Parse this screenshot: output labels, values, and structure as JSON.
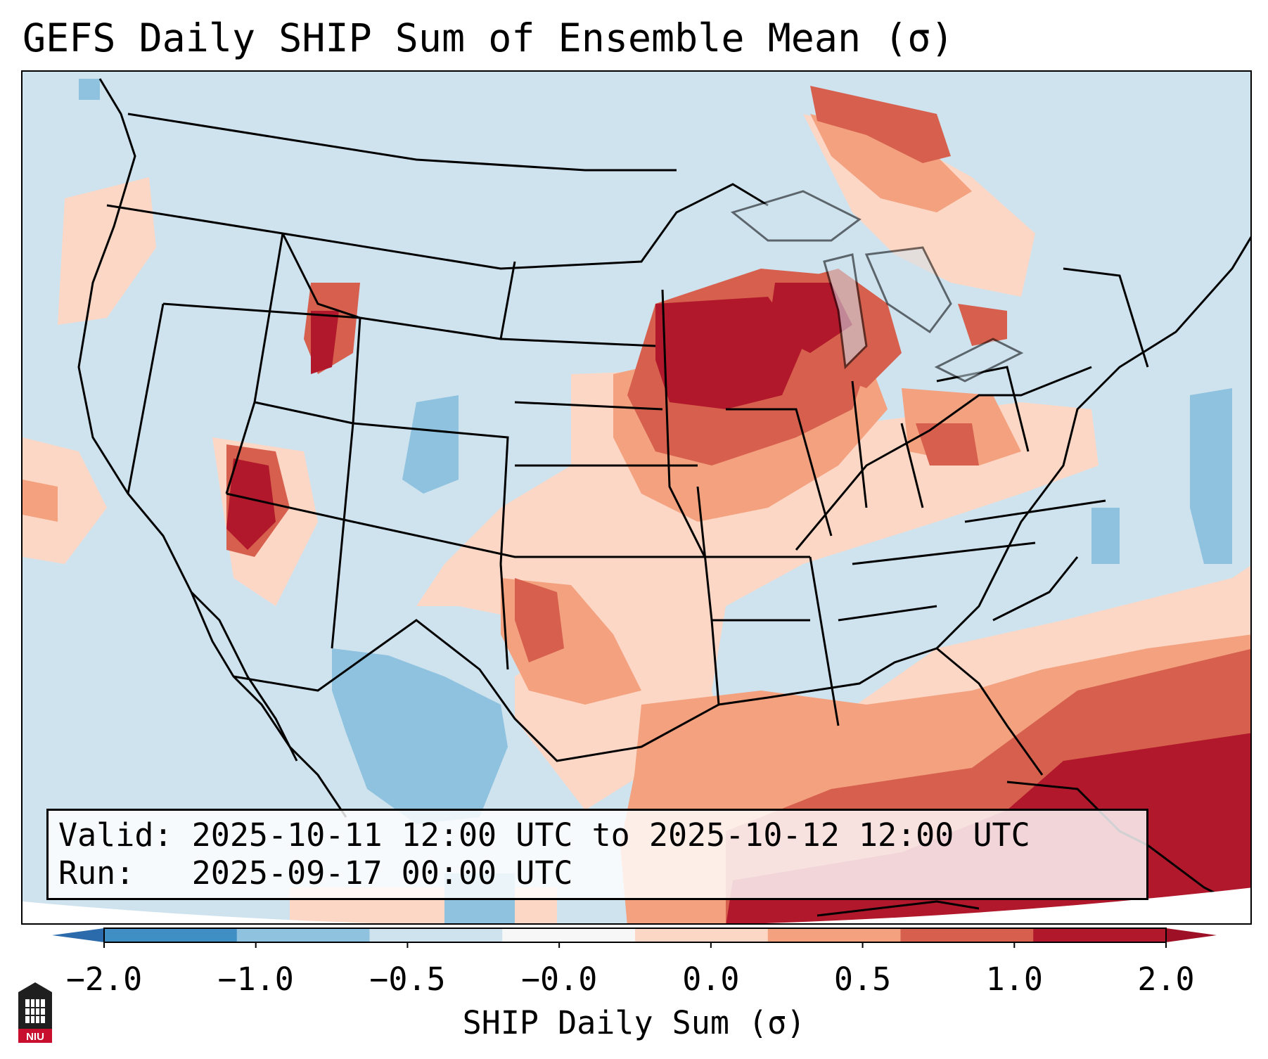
{
  "title": "GEFS Daily SHIP Sum of Ensemble Mean (σ)",
  "info": {
    "valid_label": "Valid:",
    "valid_value": "2025-10-11 12:00 UTC to 2025-10-12 12:00 UTC",
    "run_label": "Run:",
    "run_value": "2025-09-17 00:00 UTC"
  },
  "colorbar": {
    "label": "SHIP Daily Sum (σ)",
    "ticks": [
      "−2.0",
      "−1.0",
      "−0.5",
      "−0.0",
      "0.0",
      "0.5",
      "1.0",
      "2.0"
    ],
    "colors": [
      "#3f8ec4",
      "#8fc2de",
      "#cfe3ef",
      "#f7f7f7",
      "#fcd7c5",
      "#f3a17f",
      "#d6604d",
      "#b2182b"
    ],
    "extend_min_color": "#2b6aab",
    "extend_max_color": "#9e1025"
  },
  "logo": {
    "text": "NIU",
    "color": "#c8102e"
  }
}
